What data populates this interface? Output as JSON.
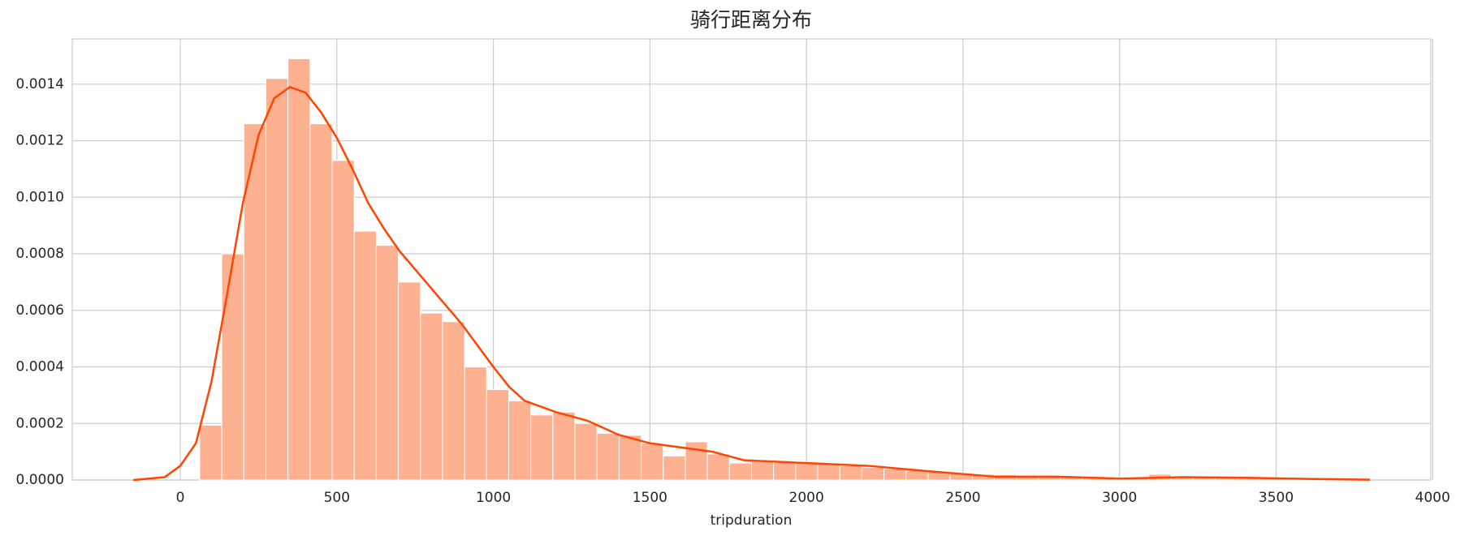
{
  "chart_data": {
    "type": "histogram",
    "title": "骑行距离分布",
    "x_label": "tripduration",
    "bins": [
      62,
      132.5,
      203,
      273.5,
      344,
      414.5,
      485,
      555.5,
      626,
      696.5,
      767,
      837.5,
      908,
      978.5,
      1049,
      1119.5,
      1190,
      1260.5,
      1331,
      1401.5,
      1472,
      1542.5,
      1613,
      1683.5,
      1754,
      1824.5,
      1895,
      1965.5,
      2036,
      2106.5,
      2177,
      2247.5,
      2318,
      2388.5,
      2459,
      2529.5,
      2600,
      2670.5,
      2741,
      2811.5,
      2882,
      2952.5,
      3023,
      3093.5,
      3164,
      3234.5,
      3305,
      3375.5,
      3446,
      3516.5,
      3587,
      3657.5,
      3728,
      3798.5
    ],
    "values": [
      0.000194,
      0.0008,
      0.00126,
      0.00142,
      0.00149,
      0.00126,
      0.00113,
      0.00088,
      0.00083,
      0.0007,
      0.00059,
      0.00056,
      0.0004,
      0.00032,
      0.00028,
      0.00023,
      0.00024,
      0.0002,
      0.000165,
      0.000158,
      0.00013,
      8.5e-05,
      0.000135,
      9.2e-05,
      6e-05,
      6.5e-05,
      6.2e-05,
      6e-05,
      5.5e-05,
      5e-05,
      4.5e-05,
      4e-05,
      3.5e-05,
      3e-05,
      2.5e-05,
      2e-05,
      1.8e-05,
      1.5e-05,
      1.5e-05,
      1.2e-05,
      1.2e-05,
      1e-05,
      1e-05,
      2e-05,
      8e-06,
      8e-06,
      7e-06,
      6e-06,
      5e-06,
      5e-06,
      4e-06,
      3e-06,
      3e-06
    ],
    "color": "#fdb190",
    "kde": {
      "color": "#ff4500",
      "x": [
        -150,
        -50,
        0,
        50,
        100,
        150,
        200,
        250,
        300,
        350,
        400,
        450,
        500,
        550,
        600,
        650,
        700,
        800,
        900,
        1000,
        1050,
        1100,
        1200,
        1300,
        1400,
        1500,
        1600,
        1700,
        1800,
        1900,
        2000,
        2200,
        2400,
        2600,
        2800,
        3000,
        3200,
        3400,
        3600,
        3800
      ],
      "y": [
        0,
        1e-05,
        5e-05,
        0.00013,
        0.00035,
        0.00066,
        0.00098,
        0.00122,
        0.00135,
        0.00139,
        0.00137,
        0.0013,
        0.00121,
        0.0011,
        0.00098,
        0.00089,
        0.00081,
        0.00068,
        0.00055,
        0.0004,
        0.00033,
        0.00028,
        0.00024,
        0.00021,
        0.00016,
        0.00013,
        0.000115,
        0.0001,
        7e-05,
        6.5e-05,
        6e-05,
        5e-05,
        3e-05,
        1.2e-05,
        1.2e-05,
        5e-06,
        1e-05,
        8e-06,
        4e-06,
        1e-06
      ]
    },
    "xlim": [
      -345,
      3994
    ],
    "ylim": [
      0,
      0.00156
    ],
    "xticks": [
      0,
      500,
      1000,
      1500,
      2000,
      2500,
      3000,
      3500,
      4000
    ],
    "yticks": [
      {
        "value": 0,
        "label": "0.0000"
      },
      {
        "value": 0.0002,
        "label": "0.0002"
      },
      {
        "value": 0.0004,
        "label": "0.0004"
      },
      {
        "value": 0.0006,
        "label": "0.0006"
      },
      {
        "value": 0.0008,
        "label": "0.0008"
      },
      {
        "value": 0.001,
        "label": "0.0010"
      },
      {
        "value": 0.0012,
        "label": "0.0012"
      },
      {
        "value": 0.0014,
        "label": "0.0014"
      }
    ],
    "grid": true
  }
}
